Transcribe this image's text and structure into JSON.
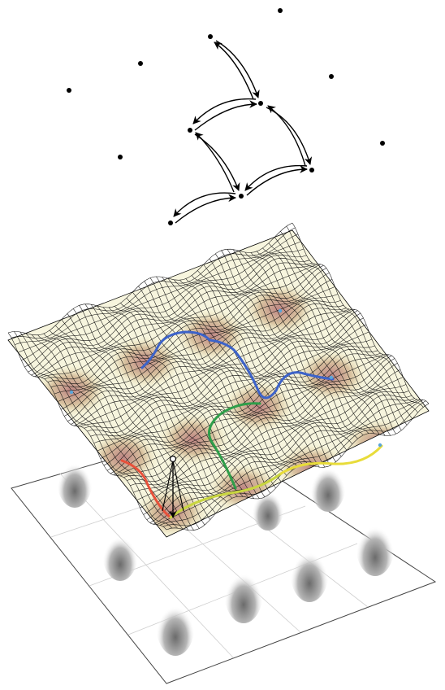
{
  "figure": {
    "kind": "energy-landscape-schematic",
    "lattice_points": [
      {
        "id": "s1"
      },
      {
        "id": "s2"
      },
      {
        "id": "s3"
      },
      {
        "id": "s4"
      },
      {
        "id": "s5"
      },
      {
        "id": "s6"
      },
      {
        "id": "s7"
      },
      {
        "id": "s8"
      },
      {
        "id": "s9"
      },
      {
        "id": "s10"
      },
      {
        "id": "s11"
      },
      {
        "id": "s12"
      }
    ],
    "transitions": [
      {
        "from": "s1",
        "to": "s2"
      },
      {
        "from": "s2",
        "to": "s3"
      },
      {
        "from": "s3",
        "to": "s4"
      },
      {
        "from": "s4",
        "to": "s5"
      },
      {
        "from": "s5",
        "to": "s6"
      },
      {
        "from": "s6",
        "to": "s7"
      }
    ],
    "surface": {
      "wells_per_side": 4,
      "wireframe_color": "#111111",
      "well_fill_colors": [
        "#f3f0c8",
        "#dcc6a8",
        "#c08a86"
      ]
    },
    "trajectories": [
      {
        "segment": "red",
        "color": "#e8503a"
      },
      {
        "segment": "green",
        "color": "#2f9e4a"
      },
      {
        "segment": "yellow-green",
        "color": "#c9d640"
      },
      {
        "segment": "yellow",
        "color": "#e8dc3a"
      },
      {
        "segment": "blue",
        "color": "#3d63c9"
      }
    ],
    "probability_plane": {
      "grid_cells": 4,
      "peak_color": "#8a8a8a"
    }
  }
}
